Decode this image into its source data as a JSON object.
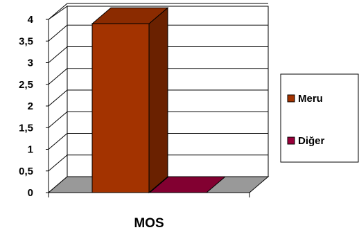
{
  "chart_data": {
    "type": "bar",
    "categories": [
      "MOS"
    ],
    "series": [
      {
        "name": "Meru",
        "values": [
          3.9
        ],
        "color": "#a33300"
      },
      {
        "name": "Diğer",
        "values": [
          0
        ],
        "color": "#99003a"
      }
    ],
    "ylim": [
      0,
      4
    ],
    "yticks": [
      "0",
      "0,5",
      "1",
      "1,5",
      "2",
      "2,5",
      "3",
      "3,5",
      "4"
    ],
    "grid": true,
    "legend_position": "right",
    "style": "3d",
    "colors": {
      "wall": "#ffffff",
      "floor": "#999999",
      "gridline": "#000000"
    }
  }
}
